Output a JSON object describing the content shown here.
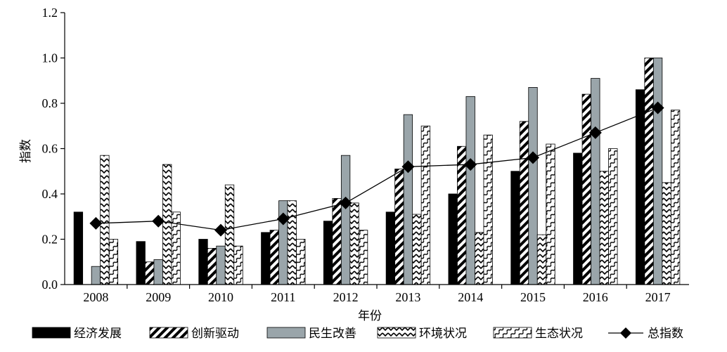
{
  "chart_data": {
    "type": "bar",
    "title": "",
    "xlabel": "年份",
    "ylabel": "指数",
    "categories": [
      "2008",
      "2009",
      "2010",
      "2011",
      "2012",
      "2013",
      "2014",
      "2015",
      "2016",
      "2017"
    ],
    "ylim": [
      0,
      1.2
    ],
    "yticks": [
      "0.0",
      "0.2",
      "0.4",
      "0.6",
      "0.8",
      "1.0",
      "1.2"
    ],
    "grid": false,
    "legend_position": "bottom",
    "series": [
      {
        "name": "经济发展",
        "pattern": "solid-black",
        "values": [
          0.32,
          0.19,
          0.2,
          0.23,
          0.28,
          0.32,
          0.4,
          0.5,
          0.58,
          0.86
        ]
      },
      {
        "name": "创新驱动",
        "pattern": "diagonal-stripes",
        "values": [
          0.0,
          0.1,
          0.16,
          0.24,
          0.38,
          0.51,
          0.61,
          0.72,
          0.84,
          1.0
        ]
      },
      {
        "name": "民生改善",
        "pattern": "solid-gray",
        "color": "#9aa5aa",
        "values": [
          0.08,
          0.11,
          0.17,
          0.37,
          0.57,
          0.75,
          0.83,
          0.87,
          0.91,
          1.0
        ]
      },
      {
        "name": "环境状况",
        "pattern": "zigzag",
        "values": [
          0.57,
          0.53,
          0.44,
          0.37,
          0.36,
          0.31,
          0.23,
          0.22,
          0.5,
          0.45
        ]
      },
      {
        "name": "生态状况",
        "pattern": "wave",
        "values": [
          0.2,
          0.32,
          0.17,
          0.2,
          0.24,
          0.7,
          0.66,
          0.62,
          0.6,
          0.77
        ]
      }
    ],
    "line_series": {
      "name": "总指数",
      "marker": "diamond",
      "values": [
        0.27,
        0.28,
        0.24,
        0.29,
        0.36,
        0.52,
        0.53,
        0.56,
        0.67,
        0.78
      ]
    }
  }
}
